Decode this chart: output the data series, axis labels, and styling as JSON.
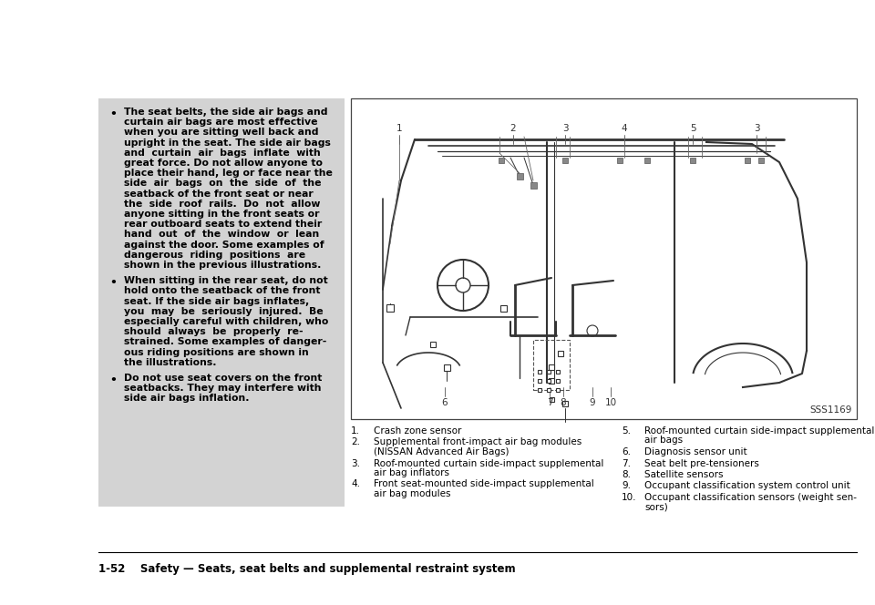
{
  "bg_color": "#ffffff",
  "text_area_bg": "#d3d3d3",
  "title_text": "1-52    Safety — Seats, seat belts and supplemental restraint system",
  "bullet1_lines": [
    "The seat belts, the side air bags and",
    "curtain air bags are most effective",
    "when you are sitting well back and",
    "upright in the seat. The side air bags",
    "and  curtain  air  bags  inflate  with",
    "great force. Do not allow anyone to",
    "place their hand, leg or face near the",
    "side  air  bags  on  the  side  of  the",
    "seatback of the front seat or near",
    "the  side  roof  rails.  Do  not  allow",
    "anyone sitting in the front seats or",
    "rear outboard seats to extend their",
    "hand  out  of  the  window  or  lean",
    "against the door. Some examples of",
    "dangerous  riding  positions  are",
    "shown in the previous illustrations."
  ],
  "bullet2_lines": [
    "When sitting in the rear seat, do not",
    "hold onto the seatback of the front",
    "seat. If the side air bags inflates,",
    "you  may  be  seriously  injured.  Be",
    "especially careful with children, who",
    "should  always  be  properly  re-",
    "strained. Some examples of danger-",
    "ous riding positions are shown in",
    "the illustrations."
  ],
  "bullet3_lines": [
    "Do not use seat covers on the front",
    "seatbacks. They may interfere with",
    "side air bags inflation."
  ],
  "caption_ref": "SSS1169",
  "left_captions": [
    [
      "1.",
      "Crash zone sensor"
    ],
    [
      "2.",
      "Supplemental front-impact air bag modules",
      "(NISSAN Advanced Air Bags)"
    ],
    [
      "3.",
      "Roof-mounted curtain side-impact supplemental",
      "air bag inflators"
    ],
    [
      "4.",
      "Front seat-mounted side-impact supplemental",
      "air bag modules"
    ]
  ],
  "right_captions": [
    [
      "5.",
      "Roof-mounted curtain side-impact supplemental",
      "air bags"
    ],
    [
      "6.",
      "Diagnosis sensor unit"
    ],
    [
      "7.",
      "Seat belt pre-tensioners"
    ],
    [
      "8.",
      "Satellite sensors"
    ],
    [
      "9.",
      "Occupant classification system control unit"
    ],
    [
      "10.",
      "Occupant classification sensors (weight sen-",
      "sors)"
    ]
  ]
}
